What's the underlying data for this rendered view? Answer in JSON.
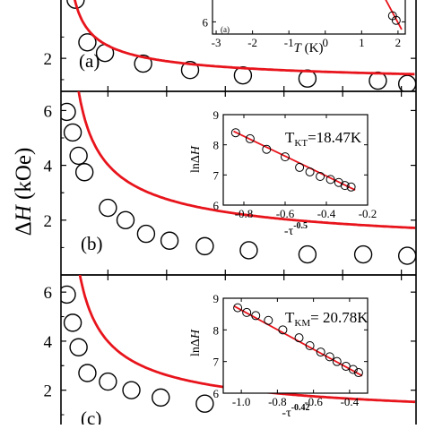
{
  "figure": {
    "ylabel_main": "ΔH (kOe)",
    "colors": {
      "fit": "#e8141c",
      "marker": "#000000",
      "axis": "#000000"
    }
  },
  "chart_data": [
    {
      "type": "scatter",
      "panel_label": "(a)",
      "xlabel": "",
      "ylabel": "ΔH (kOe)",
      "yticks": [
        "2"
      ],
      "xlim": [
        18.4,
        30.5
      ],
      "ylim": [
        0.45,
        6.0
      ],
      "series": [
        {
          "kind": "markers",
          "x": [
            18.9,
            19.3,
            19.9,
            21.2,
            22.8,
            24.6,
            26.8,
            29.2,
            30.2
          ],
          "y": [
            4.75,
            2.75,
            2.25,
            1.75,
            1.45,
            1.2,
            1.05,
            0.95,
            0.8
          ]
        },
        {
          "kind": "fit",
          "curve": "KT",
          "param": 18.47
        }
      ],
      "inset": {
        "xlabel": "T (K)",
        "xticks": [
          "-3",
          "-2",
          "-1",
          "0",
          "1",
          "2"
        ],
        "yticks": [
          "6"
        ],
        "xlim": [
          -3.1,
          2.2
        ],
        "ylim": [
          5.6,
          7.6
        ],
        "label": "(a)",
        "markers": {
          "x": [
            1.85,
            1.95
          ],
          "y": [
            6.2,
            6.05
          ]
        },
        "fit": {
          "x": [
            1.45,
            2.1
          ],
          "y": [
            7.2,
            5.75
          ]
        }
      }
    },
    {
      "type": "scatter",
      "panel_label": "(b)",
      "xlabel": "",
      "ylabel": "ΔH (kOe)",
      "yticks": [
        "2",
        "4",
        "6"
      ],
      "xlim": [
        18.4,
        30.5
      ],
      "ylim": [
        0.0,
        6.7
      ],
      "series": [
        {
          "kind": "markers",
          "x": [
            18.6,
            18.8,
            19.0,
            19.2,
            20.0,
            20.6,
            21.3,
            22.1,
            23.3,
            24.8,
            26.8,
            28.7,
            30.2
          ],
          "y": [
            5.95,
            5.2,
            4.35,
            3.75,
            2.45,
            2.0,
            1.5,
            1.25,
            1.05,
            0.9,
            0.75,
            0.75,
            0.7
          ]
        },
        {
          "kind": "fit",
          "curve": "KT",
          "param": 18.47
        }
      ],
      "inset": {
        "xlabel": "-τ^-0.5",
        "xlabel_base": "-τ",
        "xlabel_sup": "-0.5",
        "ylabel": "lnΔH",
        "xticks": [
          "-0.8",
          "-0.6",
          "-0.4",
          "-0.2"
        ],
        "yticks": [
          "6",
          "7",
          "8",
          "9"
        ],
        "xlim": [
          -0.9,
          -0.2
        ],
        "ylim": [
          6.0,
          9.0
        ],
        "annotation_base": "T",
        "annotation_sub": "KT",
        "annotation_rest": "=18.47K",
        "markers": {
          "x": [
            -0.84,
            -0.77,
            -0.69,
            -0.6,
            -0.53,
            -0.48,
            -0.43,
            -0.38,
            -0.34,
            -0.31,
            -0.28
          ],
          "y": [
            8.4,
            8.2,
            7.85,
            7.6,
            7.25,
            7.1,
            6.95,
            6.85,
            6.75,
            6.65,
            6.6
          ]
        },
        "fit": {
          "x": [
            -0.85,
            -0.26
          ],
          "y": [
            8.45,
            6.5
          ]
        }
      }
    },
    {
      "type": "scatter",
      "panel_label": "(c)",
      "xlabel": "",
      "ylabel": "ΔH (kOe)",
      "yticks": [
        "2",
        "4",
        "6"
      ],
      "xlim": [
        18.4,
        30.5
      ],
      "ylim": [
        0.6,
        6.7
      ],
      "series": [
        {
          "kind": "markers",
          "x": [
            18.6,
            18.8,
            19.0,
            19.3,
            20.0,
            20.8,
            21.8,
            23.3
          ],
          "y": [
            5.9,
            4.75,
            3.75,
            2.7,
            2.35,
            2.0,
            1.7,
            1.45
          ]
        },
        {
          "kind": "fit",
          "curve": "KM",
          "param": 20.78
        }
      ],
      "inset": {
        "xlabel": "-τ^-0.42",
        "xlabel_base": "-τ",
        "xlabel_sup": "-0.42",
        "ylabel": "lnΔH",
        "xticks": [
          "-1.0",
          "-0.8",
          "-0.6",
          "-0.4"
        ],
        "yticks": [
          "6",
          "7",
          "8",
          "9"
        ],
        "xlim": [
          -1.1,
          -0.3
        ],
        "ylim": [
          6.0,
          9.0
        ],
        "annotation_base": "T",
        "annotation_sub": "KM",
        "annotation_rest": "= 20.78K",
        "markers": {
          "x": [
            -1.02,
            -0.97,
            -0.92,
            -0.85,
            -0.77,
            -0.68,
            -0.62,
            -0.56,
            -0.51,
            -0.47,
            -0.42,
            -0.38,
            -0.35
          ],
          "y": [
            8.7,
            8.55,
            8.45,
            8.3,
            8.0,
            7.75,
            7.5,
            7.3,
            7.15,
            7.0,
            6.85,
            6.75,
            6.65
          ]
        },
        "fit": {
          "x": [
            -1.04,
            -0.33
          ],
          "y": [
            8.75,
            6.55
          ]
        }
      }
    }
  ]
}
